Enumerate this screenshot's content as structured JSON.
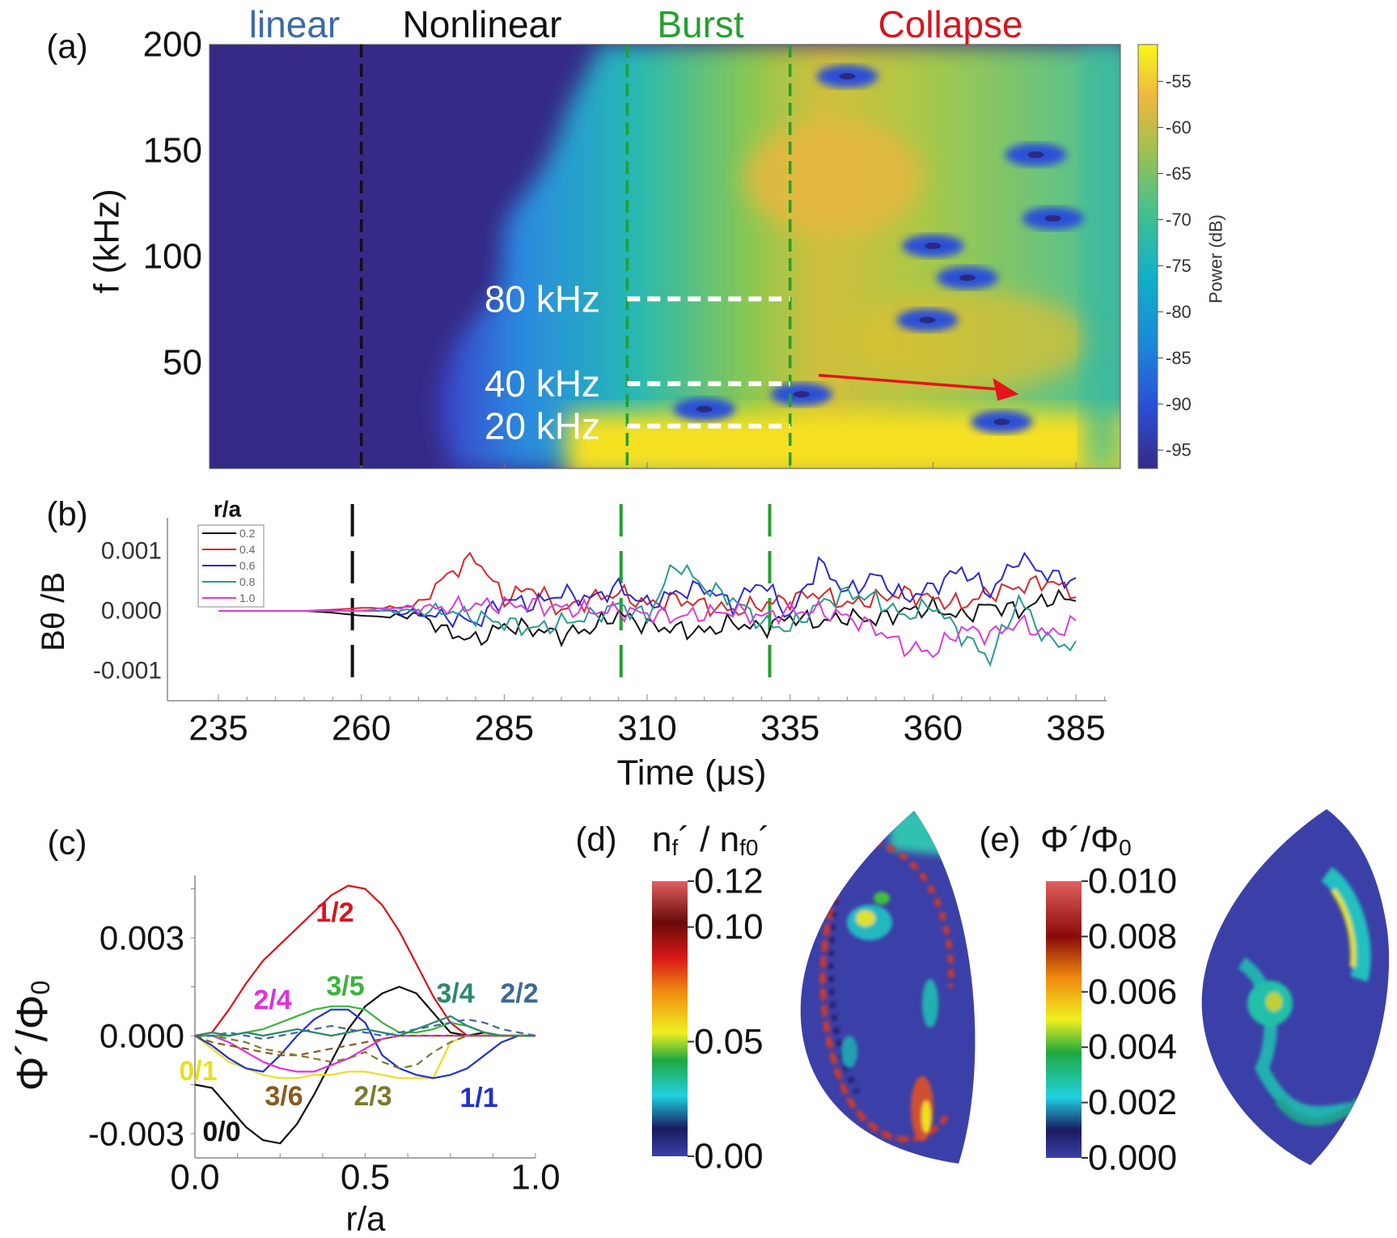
{
  "chart_data": [
    {
      "panel": "(a)",
      "type": "heatmap",
      "phase_labels": [
        {
          "text": "linear",
          "color": "#3b69a9"
        },
        {
          "text": "Nonlinear",
          "color": "#111111"
        },
        {
          "text": "Burst",
          "color": "#23a02e"
        },
        {
          "text": "Collapse",
          "color": "#d8141c"
        }
      ],
      "ylabel": "f (kHz)",
      "ylim": [
        0,
        200
      ],
      "xlim": [
        233.5,
        392.8
      ],
      "yticks": [
        "200",
        "150",
        "100",
        "50"
      ],
      "ytick_values": [
        200,
        150,
        100,
        50
      ],
      "phase_boundaries": [
        {
          "t": 260,
          "color": "#111111"
        },
        {
          "t": 306.5,
          "color": "#23a02e"
        },
        {
          "t": 335,
          "color": "#23a02e"
        }
      ],
      "frequency_markers": [
        {
          "label": "80 kHz",
          "f": 80
        },
        {
          "label": "40 kHz",
          "f": 40
        },
        {
          "label": "20 kHz",
          "f": 20
        }
      ],
      "marker_t_range": [
        306.5,
        335
      ],
      "arrow": {
        "from": [
          340,
          44
        ],
        "to": [
          375,
          35
        ],
        "color": "#e8131a"
      },
      "power_minima": [
        [
          345,
          185
        ],
        [
          378,
          148
        ],
        [
          381,
          118
        ],
        [
          360,
          105
        ],
        [
          366,
          90
        ],
        [
          359,
          70
        ],
        [
          320,
          28
        ],
        [
          337,
          35
        ],
        [
          372,
          22
        ]
      ],
      "colorbar": {
        "label": "Power (dB)",
        "ticks": [
          "-55",
          "-60",
          "-65",
          "-70",
          "-75",
          "-80",
          "-85",
          "-90",
          "-95"
        ],
        "tick_values": [
          -55,
          -60,
          -65,
          -70,
          -75,
          -80,
          -85,
          -90,
          -95
        ],
        "range": [
          -97,
          -51
        ]
      }
    },
    {
      "panel": "(b)",
      "type": "line",
      "ylabel": "Bθ /B",
      "xlabel": "Time (μs)",
      "xticks": [
        "235",
        "260",
        "285",
        "310",
        "335",
        "360",
        "385"
      ],
      "xtick_values": [
        235,
        260,
        285,
        310,
        335,
        360,
        385
      ],
      "yticks": [
        "0.001",
        "0.000",
        "-0.001"
      ],
      "ytick_values": [
        0.001,
        0,
        -0.001
      ],
      "ylim": [
        -0.0015,
        0.0015
      ],
      "xlim": [
        230,
        392
      ],
      "phase_boundaries": [
        {
          "t": 259,
          "color": "#111111"
        },
        {
          "t": 306,
          "color": "#23a02e"
        },
        {
          "t": 332,
          "color": "#23a02e"
        }
      ],
      "legend_title": "r/a",
      "legend_position": "top-left",
      "x": [
        235,
        240,
        245,
        250,
        255,
        260,
        265,
        270,
        275,
        280,
        285,
        290,
        295,
        300,
        305,
        310,
        315,
        320,
        325,
        330,
        335,
        340,
        345,
        350,
        355,
        360,
        365,
        370,
        375,
        380,
        385
      ],
      "series": [
        {
          "name": "0.2",
          "color": "#111111",
          "values": [
            0,
            0,
            0,
            0,
            -3e-05,
            -8e-05,
            -0.0001,
            -5e-05,
            -0.00035,
            -0.0005,
            -0.00025,
            -0.0003,
            -0.0004,
            -0.0003,
            -5e-05,
            -0.00025,
            -0.0003,
            -0.00035,
            -0.0002,
            -0.0003,
            -0.0001,
            -0.0002,
            -0.0001,
            -0.00015,
            0,
            5e-05,
            -0.0001,
            0.0001,
            0,
            0.0002,
            0.0002
          ]
        },
        {
          "name": "0.4",
          "color": "#d42a2a",
          "values": [
            0,
            0,
            0,
            0,
            2e-05,
            5e-05,
            5e-05,
            0.0001,
            0.0006,
            0.0009,
            0.0002,
            0.0004,
            0,
            0.0002,
            0.0003,
            0.0001,
            0.0002,
            0.0001,
            0,
            0.0001,
            0.0002,
            0.0003,
            0.0001,
            0.0002,
            0.0003,
            0.0002,
            0.0001,
            0.0003,
            0.0004,
            0.0005,
            0.0003
          ]
        },
        {
          "name": "0.6",
          "color": "#2a2ad0",
          "values": [
            0,
            0,
            0,
            0,
            0,
            0,
            0,
            -5e-05,
            -0.0001,
            -0.0002,
            0.0002,
            0.0001,
            0.0003,
            0.0002,
            0.0004,
            0.0001,
            0.0003,
            0.0004,
            0.0001,
            0.0005,
            -0.0001,
            0.0008,
            0.0003,
            0.0006,
            0.0002,
            0.0004,
            0.0007,
            0.0003,
            0.0009,
            0.0006,
            0.0005
          ]
        },
        {
          "name": "0.8",
          "color": "#2a9a90",
          "values": [
            0,
            0,
            0,
            0,
            0,
            0,
            0,
            0,
            0,
            -0.0001,
            -0.0002,
            -0.0003,
            -0.0002,
            -0.0001,
            0.0001,
            -0.0001,
            0.0008,
            0.0004,
            0.0002,
            -0.0002,
            -0.0003,
            0.0001,
            0.0003,
            0.0002,
            -0.0001,
            0.0001,
            -0.0004,
            -0.0008,
            0.0002,
            -0.0005,
            -0.0006
          ]
        },
        {
          "name": "1.0",
          "color": "#d640d6",
          "values": [
            0,
            0,
            0,
            0,
            0,
            0,
            5e-05,
            5e-05,
            5e-05,
            0.0001,
            0.0001,
            0.0001,
            5e-05,
            0,
            0,
            -5e-05,
            -0.0001,
            -5e-05,
            0,
            -0.0001,
            0,
            0,
            -0.0001,
            -0.0003,
            -0.0006,
            -0.0007,
            -0.0003,
            -0.0004,
            -0.0002,
            -0.0004,
            -0.0002
          ]
        }
      ]
    },
    {
      "panel": "(c)",
      "type": "line",
      "ylabel": "Φ´/Φ",
      "ylabel_sub": "0",
      "xlabel": "r/a",
      "xticks": [
        "0.0",
        "0.5",
        "1.0"
      ],
      "xtick_values": [
        0,
        0.5,
        1
      ],
      "yticks": [
        "0.003",
        "0.000",
        "-0.003"
      ],
      "ytick_values": [
        0.003,
        0,
        -0.003
      ],
      "xlim": [
        0,
        1
      ],
      "ylim": [
        -0.0037,
        0.0049
      ],
      "x": [
        0,
        0.05,
        0.1,
        0.15,
        0.2,
        0.25,
        0.3,
        0.35,
        0.4,
        0.45,
        0.5,
        0.55,
        0.6,
        0.65,
        0.7,
        0.75,
        0.8,
        0.85,
        0.9,
        0.95,
        1.0
      ],
      "series": [
        {
          "name": "1/2",
          "color": "#d8141c",
          "dashed": false,
          "values": [
            0,
            0.0001,
            0.0008,
            0.0016,
            0.0023,
            0.0028,
            0.0033,
            0.0038,
            0.0043,
            0.0046,
            0.0045,
            0.004,
            0.0032,
            0.0022,
            0.0012,
            0.0004,
            0,
            0,
            0,
            0,
            0
          ]
        },
        {
          "name": "0/0",
          "color": "#111111",
          "dashed": false,
          "values": [
            -0.0015,
            -0.0016,
            -0.0022,
            -0.0028,
            -0.0032,
            -0.0033,
            -0.0027,
            -0.0018,
            -0.0008,
            0.0002,
            0.0009,
            0.0013,
            0.0015,
            0.0013,
            0.0007,
            0.0001,
            0,
            0.0001,
            0,
            0,
            0
          ]
        },
        {
          "name": "0/1",
          "color": "#e8e020",
          "dashed": false,
          "values": [
            0,
            -0.0004,
            -0.0008,
            -0.001,
            -0.0012,
            -0.0013,
            -0.0013,
            -0.0012,
            -0.0012,
            -0.0011,
            -0.0011,
            -0.0012,
            -0.0013,
            -0.0013,
            -0.0013,
            -0.0002,
            0,
            0,
            0,
            0,
            0
          ]
        },
        {
          "name": "1/1",
          "color": "#2030d0",
          "dashed": false,
          "values": [
            0,
            -0.0003,
            -0.0007,
            -0.001,
            -0.0011,
            -0.0006,
            0,
            0.0005,
            0.0008,
            0.0008,
            0.0004,
            -0.0006,
            -0.001,
            -0.0012,
            -0.0013,
            -0.0012,
            -0.001,
            -0.0006,
            -0.0002,
            0,
            0
          ]
        },
        {
          "name": "2/4",
          "color": "#e030e0",
          "dashed": false,
          "values": [
            0,
            0,
            -0.0002,
            -0.0005,
            -0.0008,
            -0.001,
            -0.0011,
            -0.0011,
            -0.0009,
            -0.0007,
            -0.0004,
            -0.0001,
            0,
            0,
            0,
            0,
            0,
            0,
            0,
            0,
            0
          ]
        },
        {
          "name": "3/5",
          "color": "#3ab43a",
          "dashed": false,
          "values": [
            0,
            0,
            0,
            0.0001,
            0.0002,
            0.0004,
            0.0006,
            0.0008,
            0.0009,
            0.0009,
            0.0008,
            0.0004,
            0.0001,
            0.0001,
            0.0002,
            0.0004,
            0.0003,
            0.0001,
            0,
            0,
            0
          ]
        },
        {
          "name": "3/4",
          "color": "#2a8a6a",
          "dashed": false,
          "values": [
            0,
            0.0001,
            0,
            0.0001,
            0,
            0.0001,
            0.0002,
            0.0001,
            0,
            0.0001,
            0.0002,
            0.0001,
            0,
            0.0002,
            0.0004,
            0.0006,
            0.0003,
            0.0001,
            0,
            0,
            0
          ]
        },
        {
          "name": "3/6",
          "color": "#8a5a20",
          "dashed": true,
          "values": [
            0,
            -0.0002,
            -0.0003,
            -0.0004,
            -0.0005,
            -0.0006,
            -0.0006,
            -0.0005,
            -0.0004,
            -0.0003,
            -0.0002,
            -0.0001,
            0,
            0,
            0,
            0,
            0,
            0,
            0,
            0,
            0
          ]
        },
        {
          "name": "2/3",
          "color": "#7a7a30",
          "dashed": true,
          "values": [
            0,
            0,
            -0.0001,
            -0.0002,
            -0.0004,
            -0.0005,
            -0.0006,
            -0.0007,
            -0.0008,
            -0.0007,
            -0.0005,
            -0.0008,
            -0.001,
            -0.0009,
            -0.0005,
            -0.0002,
            0,
            0,
            0,
            0,
            0
          ]
        },
        {
          "name": "2/2",
          "color": "#3c6a9a",
          "dashed": true,
          "values": [
            0,
            0,
            0.0001,
            0,
            -0.0001,
            0,
            0.0001,
            0.0002,
            0.0003,
            0.0002,
            0.0001,
            0,
            0.0001,
            0.0002,
            0.0003,
            0.0004,
            0.0005,
            0.0004,
            0.0002,
            0.0001,
            0
          ]
        }
      ]
    },
    {
      "panel": "(d)",
      "type": "heatmap",
      "title": "n",
      "title_parts": [
        "n",
        "f",
        "´ / n",
        "f0",
        "´"
      ],
      "colorbar": {
        "ticks": [
          "0.12",
          "0.10",
          "0.05",
          "0.00"
        ],
        "tick_values": [
          0.12,
          0.1,
          0.05,
          0.0
        ],
        "range": [
          0,
          0.12
        ]
      }
    },
    {
      "panel": "(e)",
      "type": "heatmap",
      "title_parts": [
        "Φ´/Φ",
        "0"
      ],
      "colorbar": {
        "ticks": [
          "0.010",
          "0.008",
          "0.006",
          "0.004",
          "0.002",
          "0.000"
        ],
        "tick_values": [
          0.01,
          0.008,
          0.006,
          0.004,
          0.002,
          0.0
        ],
        "range": [
          0,
          0.01
        ]
      }
    }
  ]
}
